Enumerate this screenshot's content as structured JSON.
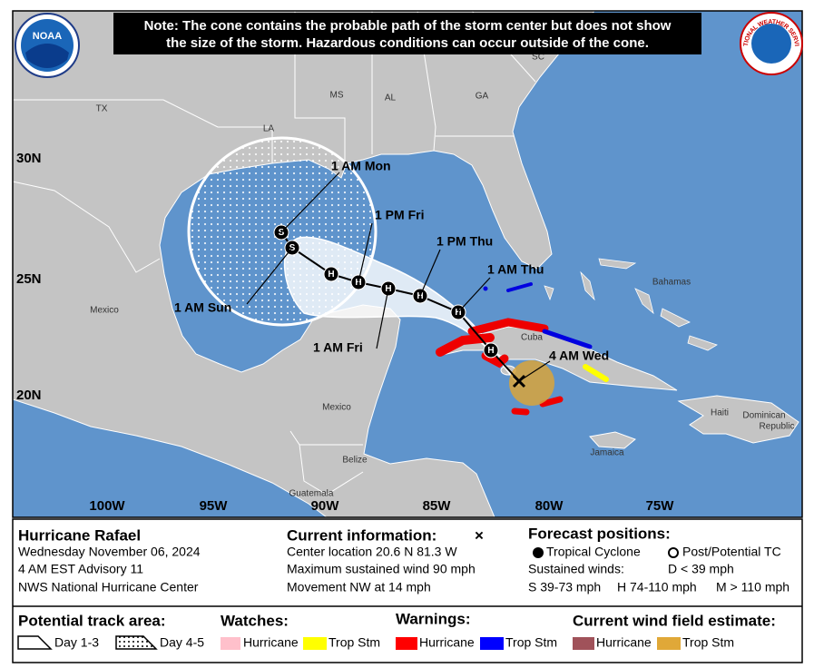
{
  "header": {
    "note": [
      "Note: The cone contains the probable path of the storm center but does not show",
      "the size of the storm. Hazardous conditions can occur outside of the cone."
    ],
    "noaa_logo": "NOAA",
    "nws_logo": "NATIONAL WEATHER SERVICE"
  },
  "map": {
    "places": [
      "TX",
      "LA",
      "MS",
      "AL",
      "GA",
      "SC",
      "Mexico",
      "Bahamas",
      "Cuba",
      "Haiti",
      "Dominican",
      "Republic",
      "Jamaica",
      "Belize",
      "Guatemala",
      "Mexico"
    ],
    "lat_labels": [
      "30N",
      "25N",
      "20N"
    ],
    "lon_labels": [
      "100W",
      "95W",
      "90W",
      "85W",
      "80W",
      "75W"
    ],
    "forecast_labels": [
      "4 AM Wed",
      "1 AM Thu",
      "1 PM Thu",
      "1 AM Fri",
      "1 PM Fri",
      "1 AM Sun",
      "1 AM Mon"
    ],
    "track_markers": [
      "H",
      "H",
      "H",
      "H",
      "H",
      "H",
      "S",
      "S"
    ]
  },
  "legend": {
    "storm": {
      "name": "Hurricane Rafael",
      "date": "Wednesday November 06, 2024",
      "advisory": "4 AM EST Advisory 11",
      "center": "NWS National Hurricane Center"
    },
    "current": {
      "title": "Current information:",
      "symbol": "×",
      "location": "Center location 20.6 N 81.3 W",
      "wind": "Maximum sustained wind 90 mph",
      "movement": "Movement NW at 14 mph"
    },
    "forecast": {
      "title": "Forecast positions:",
      "tropical": "Tropical Cyclone",
      "post": "Post/Potential TC",
      "winds": "Sustained winds:",
      "d": "D < 39 mph",
      "s": "S 39-73 mph",
      "h": "H 74-110 mph",
      "m": "M > 110 mph"
    },
    "track_area": {
      "title": "Potential track area:",
      "day13": "Day 1-3",
      "day45": "Day 4-5"
    },
    "watches": {
      "title": "Watches:",
      "hurricane": "Hurricane",
      "trop_stm": "Trop Stm"
    },
    "warnings": {
      "title": "Warnings:",
      "hurricane": "Hurricane",
      "trop_stm": "Trop Stm"
    },
    "wind_field": {
      "title": "Current wind field estimate:",
      "hurricane": "Hurricane",
      "trop_stm": "Trop Stm"
    }
  }
}
